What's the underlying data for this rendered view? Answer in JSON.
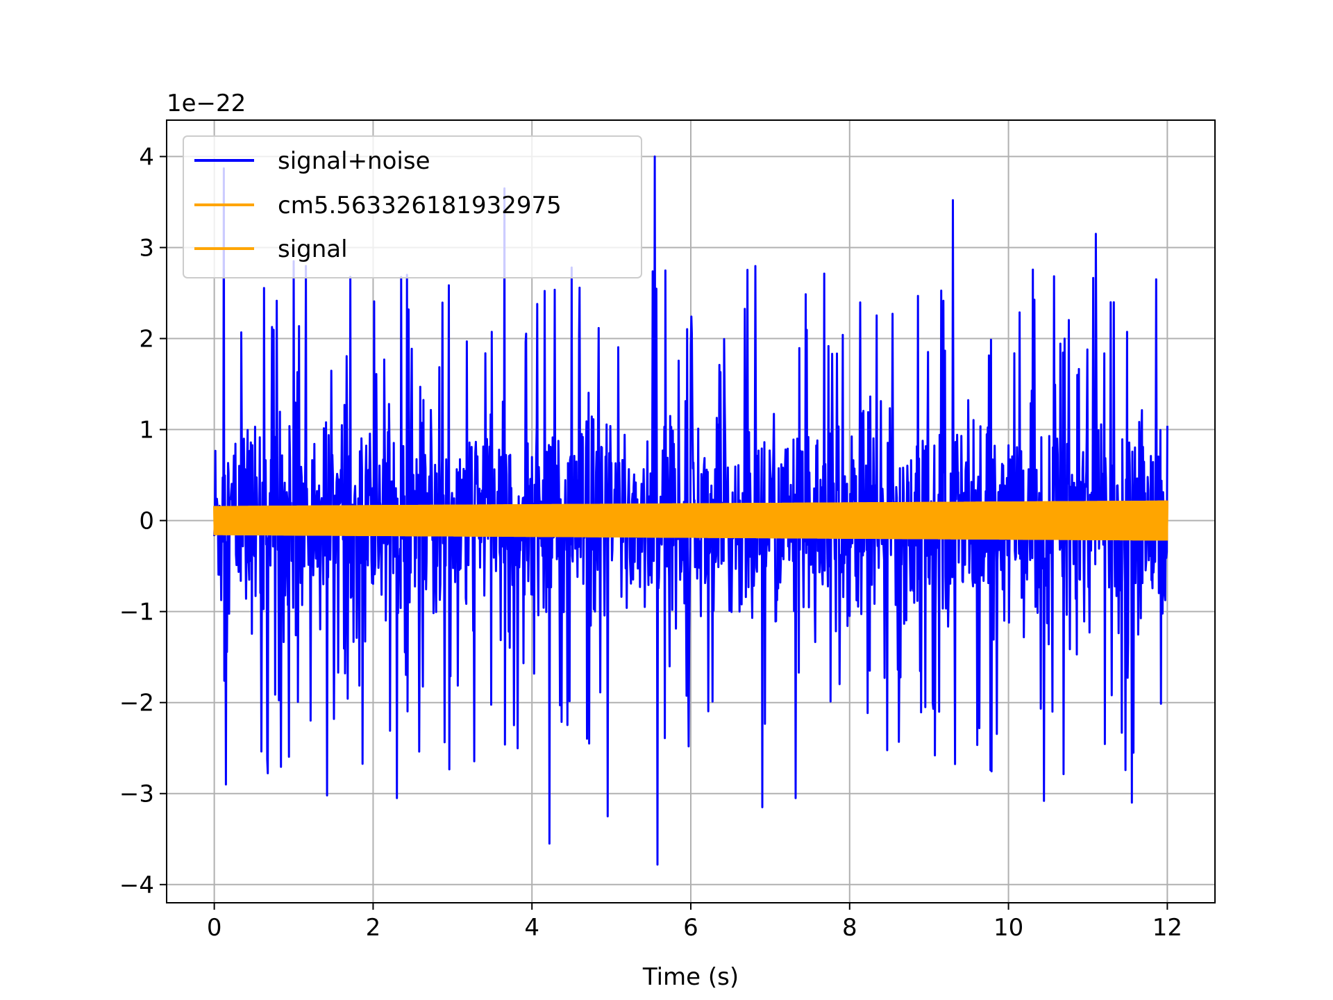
{
  "chart_data": {
    "type": "line",
    "title": "",
    "xlabel": "Time (s)",
    "ylabel": "",
    "y_offset_label": "1e−22",
    "y_scale": 1e-22,
    "xlim": [
      -0.6,
      12.6
    ],
    "ylim": [
      -4.2,
      4.4
    ],
    "x_ticks": [
      0,
      2,
      4,
      6,
      8,
      10,
      12
    ],
    "x_tick_labels": [
      "0",
      "2",
      "4",
      "6",
      "8",
      "10",
      "12"
    ],
    "y_ticks": [
      -4,
      -3,
      -2,
      -1,
      0,
      1,
      2,
      3,
      4
    ],
    "y_tick_labels": [
      "−4",
      "−3",
      "−2",
      "−1",
      "0",
      "1",
      "2",
      "3",
      "4"
    ],
    "grid": true,
    "legend_position": "upper-left",
    "series": [
      {
        "name": "signal+noise",
        "color": "#0000ff",
        "x_range": [
          0,
          12
        ],
        "typical_range": [
          -1.5,
          1.5
        ],
        "max": 4.0,
        "min": -3.8,
        "peaks": [
          {
            "x": 0.12,
            "y": 3.87
          },
          {
            "x": 0.15,
            "y": -2.9
          },
          {
            "x": 1.0,
            "y": 2.85
          },
          {
            "x": 1.42,
            "y": -3.02
          },
          {
            "x": 2.3,
            "y": -3.05
          },
          {
            "x": 3.65,
            "y": 3.65
          },
          {
            "x": 4.22,
            "y": -3.55
          },
          {
            "x": 4.95,
            "y": -3.25
          },
          {
            "x": 5.55,
            "y": 4.0
          },
          {
            "x": 5.58,
            "y": -3.78
          },
          {
            "x": 6.9,
            "y": -3.15
          },
          {
            "x": 7.32,
            "y": -3.05
          },
          {
            "x": 9.3,
            "y": 3.52
          },
          {
            "x": 10.45,
            "y": -3.08
          },
          {
            "x": 11.1,
            "y": 3.15
          },
          {
            "x": 11.55,
            "y": -3.1
          }
        ]
      },
      {
        "name": "cm5.563326181932975",
        "color": "#ffa500",
        "x_range": [
          0,
          12
        ],
        "amplitude_start": 0.16,
        "amplitude_end": 0.22
      },
      {
        "name": "signal",
        "color": "#ffa500",
        "x_range": [
          0,
          12
        ],
        "amplitude_start": 0.16,
        "amplitude_end": 0.22
      }
    ]
  }
}
